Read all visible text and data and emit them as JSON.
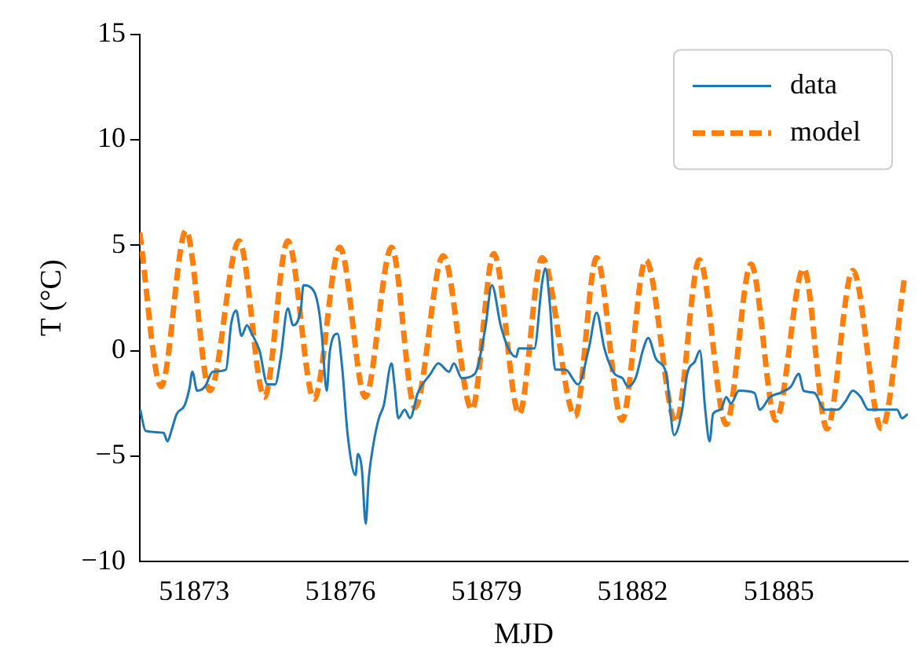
{
  "chart_data": {
    "type": "line",
    "xlabel": "MJD",
    "ylabel": "T (°C)",
    "xlim": [
      51871.88,
      51887.65
    ],
    "xticks": [
      51873,
      51876,
      51879,
      51882,
      51885
    ],
    "ylim": [
      -10,
      15
    ],
    "yticks": [
      -10,
      -5,
      0,
      5,
      10,
      15
    ],
    "grid": false,
    "legend": "top right",
    "marker": "none",
    "series": [
      {
        "name": "data",
        "color": "#1f77b4",
        "line_style": "solid",
        "x": [
          51871.89,
          51872.0,
          51872.37,
          51872.45,
          51872.53,
          51872.64,
          51872.8,
          51872.9,
          51872.96,
          51873.06,
          51873.22,
          51873.38,
          51873.65,
          51873.76,
          51873.86,
          51873.97,
          51874.08,
          51874.18,
          51874.34,
          51874.5,
          51874.66,
          51874.77,
          51874.92,
          51875.03,
          51875.19,
          51875.24,
          51875.46,
          51875.56,
          51875.62,
          51875.72,
          51875.78,
          51875.94,
          51876.04,
          51876.15,
          51876.31,
          51876.36,
          51876.44,
          51876.52,
          51876.58,
          51876.68,
          51876.79,
          51876.89,
          51877.05,
          51877.11,
          51877.19,
          51877.32,
          51877.43,
          51877.59,
          51877.85,
          51878.01,
          51878.23,
          51878.33,
          51878.49,
          51878.76,
          51878.97,
          51879.11,
          51879.29,
          51879.45,
          51879.61,
          51879.66,
          51879.98,
          51880.14,
          51880.21,
          51880.3,
          51880.41,
          51880.62,
          51880.88,
          51881.1,
          51881.26,
          51881.42,
          51881.63,
          51881.79,
          51881.9,
          51882.06,
          51882.22,
          51882.32,
          51882.48,
          51882.69,
          51882.85,
          51883.01,
          51883.12,
          51883.28,
          51883.38,
          51883.49,
          51883.58,
          51883.65,
          51883.81,
          51883.92,
          51884.02,
          51884.18,
          51884.5,
          51884.61,
          51884.82,
          51885.03,
          51885.25,
          51885.41,
          51885.51,
          51885.73,
          51885.94,
          51886.21,
          51886.37,
          51886.52,
          51886.68,
          51886.84,
          51887.43,
          51887.53,
          51887.65
        ],
        "values": [
          -2.8,
          -3.8,
          -3.9,
          -4.3,
          -3.8,
          -3.0,
          -2.6,
          -1.8,
          -1.0,
          -1.9,
          -1.7,
          -1.0,
          -0.9,
          1.3,
          1.9,
          0.7,
          1.2,
          0.8,
          0.0,
          -1.6,
          -1.6,
          -0.4,
          2.0,
          1.2,
          2.0,
          3.1,
          2.8,
          1.9,
          0.7,
          -1.9,
          -0.1,
          0.8,
          -0.9,
          -4.0,
          -5.9,
          -4.9,
          -5.6,
          -8.2,
          -6.1,
          -4.4,
          -3.2,
          -2.6,
          -0.6,
          -1.6,
          -3.2,
          -2.8,
          -3.2,
          -2.0,
          -1.1,
          -0.6,
          -1.0,
          -0.6,
          -1.3,
          -1.1,
          1.0,
          3.1,
          1.2,
          0.1,
          -0.3,
          0.1,
          0.1,
          3.2,
          3.9,
          2.2,
          -0.9,
          -0.9,
          -1.6,
          0.1,
          1.8,
          0.1,
          -1.1,
          -1.3,
          -1.7,
          -1.3,
          0.1,
          0.6,
          -0.4,
          -1.1,
          -4.0,
          -2.9,
          -1.1,
          -0.5,
          0.0,
          -2.8,
          -4.3,
          -3.0,
          -2.8,
          -2.2,
          -2.5,
          -1.9,
          -2.0,
          -2.8,
          -2.2,
          -2.0,
          -1.7,
          -1.1,
          -1.9,
          -2.0,
          -2.8,
          -2.8,
          -2.4,
          -1.9,
          -2.2,
          -2.8,
          -2.8,
          -3.2,
          -3.0
        ]
      },
      {
        "name": "model",
        "color": "#ff7f0e",
        "line_style": "dashed",
        "x": [
          51871.88,
          51872.32,
          51872.83,
          51873.32,
          51873.92,
          51874.44,
          51874.92,
          51875.46,
          51875.99,
          51876.51,
          51877.05,
          51877.53,
          51878.11,
          51878.7,
          51879.15,
          51879.67,
          51880.14,
          51880.82,
          51881.26,
          51881.78,
          51882.27,
          51882.89,
          51883.37,
          51883.92,
          51884.43,
          51884.94,
          51885.51,
          51885.99,
          51886.52,
          51887.11,
          51887.59
        ],
        "values": [
          5.6,
          -1.7,
          5.7,
          -1.9,
          5.2,
          -2.2,
          5.2,
          -2.3,
          4.9,
          -2.2,
          4.9,
          -2.7,
          4.5,
          -2.8,
          4.6,
          -3.0,
          4.4,
          -3.1,
          4.4,
          -3.3,
          4.3,
          -3.4,
          4.3,
          -3.5,
          4.1,
          -3.3,
          3.9,
          -3.7,
          3.8,
          -3.7,
          3.6
        ]
      }
    ]
  }
}
